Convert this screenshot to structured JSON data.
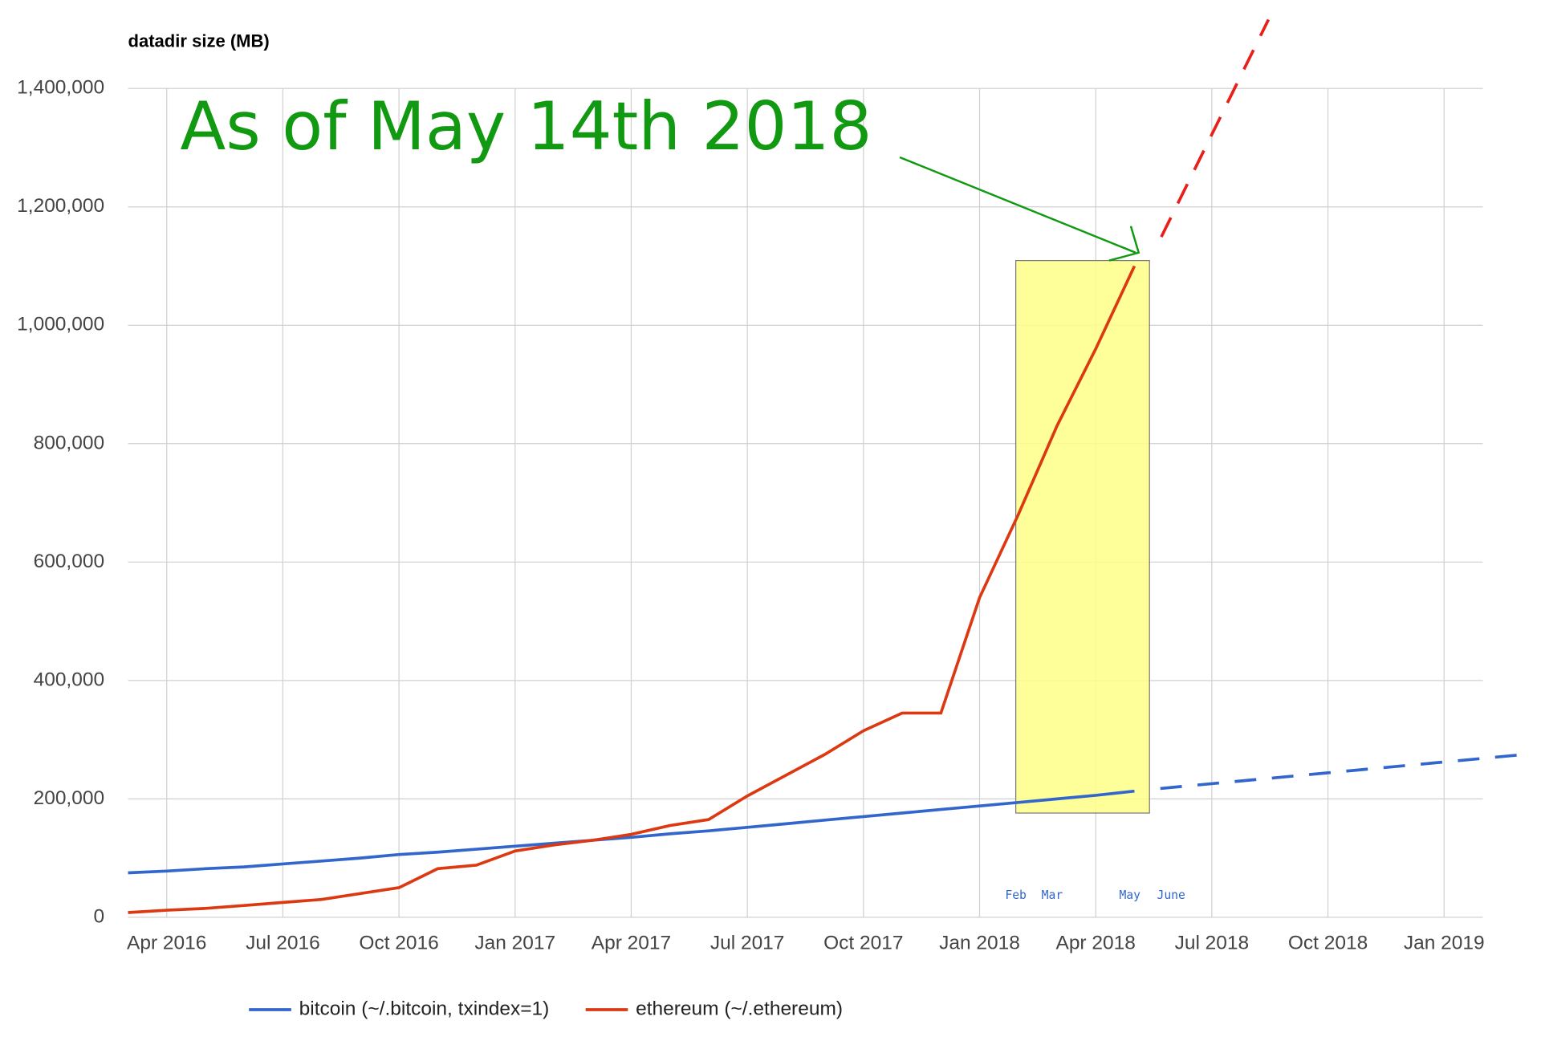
{
  "chart_data": {
    "type": "line",
    "title": "datadir size (MB)",
    "x": [
      "2016-03",
      "2016-04",
      "2016-05",
      "2016-06",
      "2016-07",
      "2016-08",
      "2016-09",
      "2016-10",
      "2016-11",
      "2016-12",
      "2017-01",
      "2017-02",
      "2017-03",
      "2017-04",
      "2017-05",
      "2017-06",
      "2017-07",
      "2017-08",
      "2017-09",
      "2017-10",
      "2017-11",
      "2017-12",
      "2018-01",
      "2018-02",
      "2018-03",
      "2018-04",
      "2018-05"
    ],
    "series": [
      {
        "name": "bitcoin (~/.bitcoin, txindex=1)",
        "color": "#3366cc",
        "values": [
          75000,
          78000,
          82000,
          85000,
          90000,
          95000,
          100000,
          106000,
          110000,
          115000,
          120000,
          125000,
          130000,
          135000,
          141000,
          146000,
          152000,
          158000,
          164000,
          170000,
          176000,
          182000,
          188000,
          194000,
          200000,
          206000,
          213000
        ]
      },
      {
        "name": "ethereum (~/.ethereum)",
        "color": "#dc3912",
        "values": [
          8000,
          12000,
          15000,
          20000,
          25000,
          30000,
          40000,
          50000,
          82000,
          88000,
          112000,
          122000,
          130000,
          140000,
          155000,
          165000,
          205000,
          240000,
          275000,
          315000,
          345000,
          345000,
          540000,
          680000,
          830000,
          960000,
          1100000
        ]
      }
    ],
    "xlim": [
      "2016-03",
      "2019-02"
    ],
    "xticks": [
      {
        "value": "2016-04",
        "label": "Apr 2016"
      },
      {
        "value": "2016-07",
        "label": "Jul 2016"
      },
      {
        "value": "2016-10",
        "label": "Oct 2016"
      },
      {
        "value": "2017-01",
        "label": "Jan 2017"
      },
      {
        "value": "2017-04",
        "label": "Apr 2017"
      },
      {
        "value": "2017-07",
        "label": "Jul 2017"
      },
      {
        "value": "2017-10",
        "label": "Oct 2017"
      },
      {
        "value": "2018-01",
        "label": "Jan 2018"
      },
      {
        "value": "2018-04",
        "label": "Apr 2018"
      },
      {
        "value": "2018-07",
        "label": "Jul 2018"
      },
      {
        "value": "2018-10",
        "label": "Oct 2018"
      },
      {
        "value": "2019-01",
        "label": "Jan 2019"
      }
    ],
    "ylim": [
      0,
      1400000
    ],
    "yticks": [
      0,
      {
        "value": 200000,
        "label": "200,000"
      },
      {
        "value": 400000,
        "label": "400,000"
      },
      {
        "value": 600000,
        "label": "600,000"
      },
      {
        "value": 800000,
        "label": "800,000"
      },
      {
        "value": 1000000,
        "label": "1,000,000"
      },
      {
        "value": 1200000,
        "label": "1,200,000"
      },
      {
        "value": 1400000,
        "label": "1,400,000"
      }
    ],
    "grid": true,
    "legend": "bottom",
    "annotation": "As of May 14th 2018",
    "month_marks": [
      "Feb",
      "Mar",
      "May",
      "June"
    ]
  }
}
